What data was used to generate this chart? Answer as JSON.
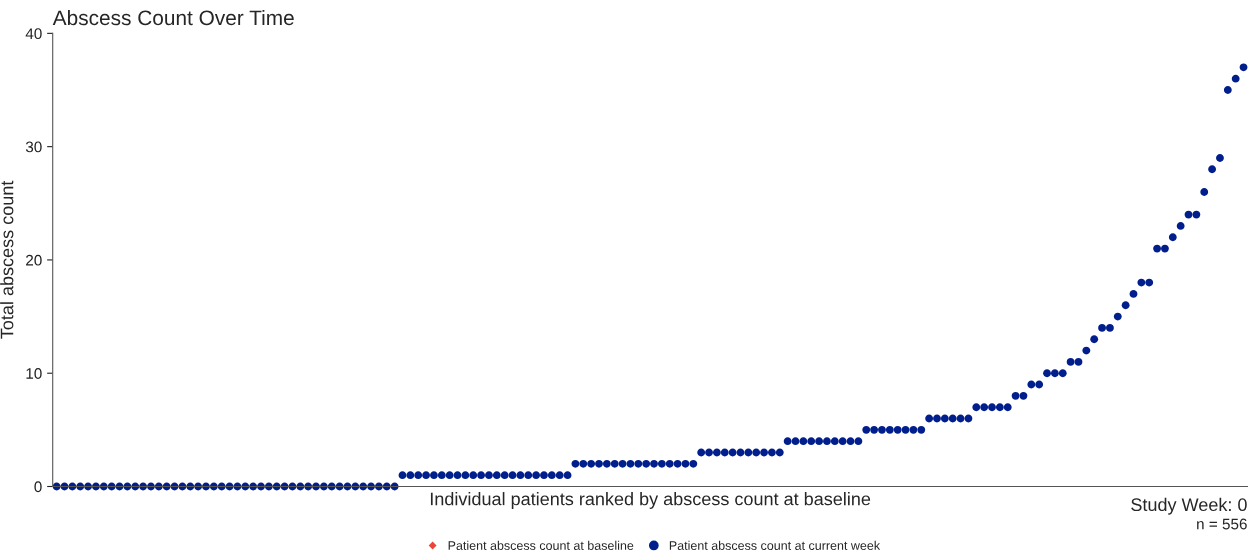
{
  "chart_data": {
    "type": "scatter",
    "title": "Abscess Count Over Time",
    "xlabel": "Individual patients ranked by abscess count at baseline",
    "ylabel": "Total abscess count",
    "categories": [
      null,
      null,
      null,
      null,
      null,
      null,
      null,
      null,
      null,
      null,
      null,
      null,
      null,
      null,
      null,
      null,
      null,
      null,
      null,
      null,
      null,
      null,
      null,
      null,
      null,
      null,
      null,
      null,
      null,
      null,
      null,
      null,
      null,
      null,
      null,
      null,
      null,
      null,
      null,
      null,
      null,
      null,
      null,
      null,
      null,
      null,
      null,
      null,
      null,
      null,
      null,
      null,
      null,
      null,
      null,
      null,
      null,
      null,
      null,
      null,
      null,
      null,
      null,
      null,
      null,
      null,
      null,
      null,
      null,
      null,
      null,
      null,
      null,
      null,
      null,
      null,
      null,
      null,
      null,
      null,
      null,
      null,
      null,
      null,
      null,
      null,
      null,
      null,
      null,
      null,
      null,
      null,
      null,
      null,
      null,
      null,
      null,
      null,
      null,
      null,
      null,
      null,
      null,
      null,
      null,
      null,
      null,
      null,
      null,
      null,
      null,
      null,
      null,
      null,
      null,
      null,
      null,
      null,
      null,
      null,
      null,
      null,
      null,
      null,
      null,
      null,
      null,
      null,
      null,
      null,
      null,
      null,
      null,
      null,
      null,
      null,
      null,
      null,
      null,
      null,
      null,
      null,
      null,
      null,
      null,
      null,
      null,
      null,
      null,
      null,
      null,
      null
    ],
    "series": [
      {
        "name": "Patient abscess count at baseline",
        "color": "#e8483c",
        "marker": "diamond",
        "values": [
          null,
          null,
          null,
          null,
          null,
          null,
          null,
          null,
          null,
          null,
          null,
          null,
          null,
          null,
          null,
          null,
          null,
          null,
          null,
          null,
          null,
          null,
          null,
          null,
          null,
          null,
          null,
          null,
          null,
          null,
          null,
          null,
          null,
          null,
          null,
          null,
          null,
          null,
          null,
          null,
          null,
          null,
          null,
          null,
          null,
          null,
          null,
          null,
          null,
          null,
          null,
          null,
          null,
          null,
          null,
          null,
          null,
          null,
          null,
          null,
          null,
          null,
          null,
          null,
          null,
          null,
          null,
          null,
          null,
          null,
          null,
          null,
          null,
          null,
          null,
          null,
          null,
          null,
          null,
          null,
          null,
          null,
          null,
          null,
          null,
          null,
          null,
          null,
          null,
          null,
          null,
          null,
          null,
          null,
          null,
          null,
          null,
          null,
          null,
          null,
          null,
          null,
          null,
          null,
          null,
          null,
          null,
          null,
          null,
          null,
          null,
          null,
          null,
          null,
          null,
          null,
          null,
          null,
          null,
          null,
          null,
          null,
          null,
          null,
          null,
          null,
          null,
          null,
          null,
          null,
          null,
          null,
          null,
          null,
          null,
          null,
          null,
          null,
          null,
          null,
          null,
          null,
          null,
          null,
          null,
          null,
          null,
          null,
          null,
          null,
          null,
          null
        ]
      },
      {
        "name": "Patient abscess count at current week",
        "color": "#001e8c",
        "marker": "circle",
        "values": [
          0,
          0,
          0,
          0,
          0,
          0,
          0,
          0,
          0,
          0,
          0,
          0,
          0,
          0,
          0,
          0,
          0,
          0,
          0,
          0,
          0,
          0,
          0,
          0,
          0,
          0,
          0,
          0,
          0,
          0,
          0,
          0,
          0,
          0,
          0,
          0,
          0,
          0,
          0,
          0,
          0,
          0,
          0,
          0,
          1,
          1,
          1,
          1,
          1,
          1,
          1,
          1,
          1,
          1,
          1,
          1,
          1,
          1,
          1,
          1,
          1,
          1,
          1,
          1,
          1,
          1,
          2,
          2,
          2,
          2,
          2,
          2,
          2,
          2,
          2,
          2,
          2,
          2,
          2,
          2,
          2,
          2,
          3,
          3,
          3,
          3,
          3,
          3,
          3,
          3,
          3,
          3,
          3,
          4,
          4,
          4,
          4,
          4,
          4,
          4,
          4,
          4,
          4,
          5,
          5,
          5,
          5,
          5,
          5,
          5,
          5,
          6,
          6,
          6,
          6,
          6,
          6,
          7,
          7,
          7,
          7,
          7,
          8,
          8,
          9,
          9,
          10,
          10,
          10,
          11,
          11,
          12,
          13,
          14,
          14,
          15,
          16,
          17,
          18,
          18,
          21,
          21,
          22,
          23,
          24,
          24,
          26,
          28,
          29,
          35,
          36,
          37
        ]
      }
    ],
    "ylim": [
      0,
      40
    ],
    "yticks": [
      0,
      10,
      20,
      30,
      40
    ],
    "tick_labels": "y",
    "grid": false,
    "legend": "bottom",
    "annotations": [
      "Study Week: 0",
      "n = 556"
    ]
  }
}
